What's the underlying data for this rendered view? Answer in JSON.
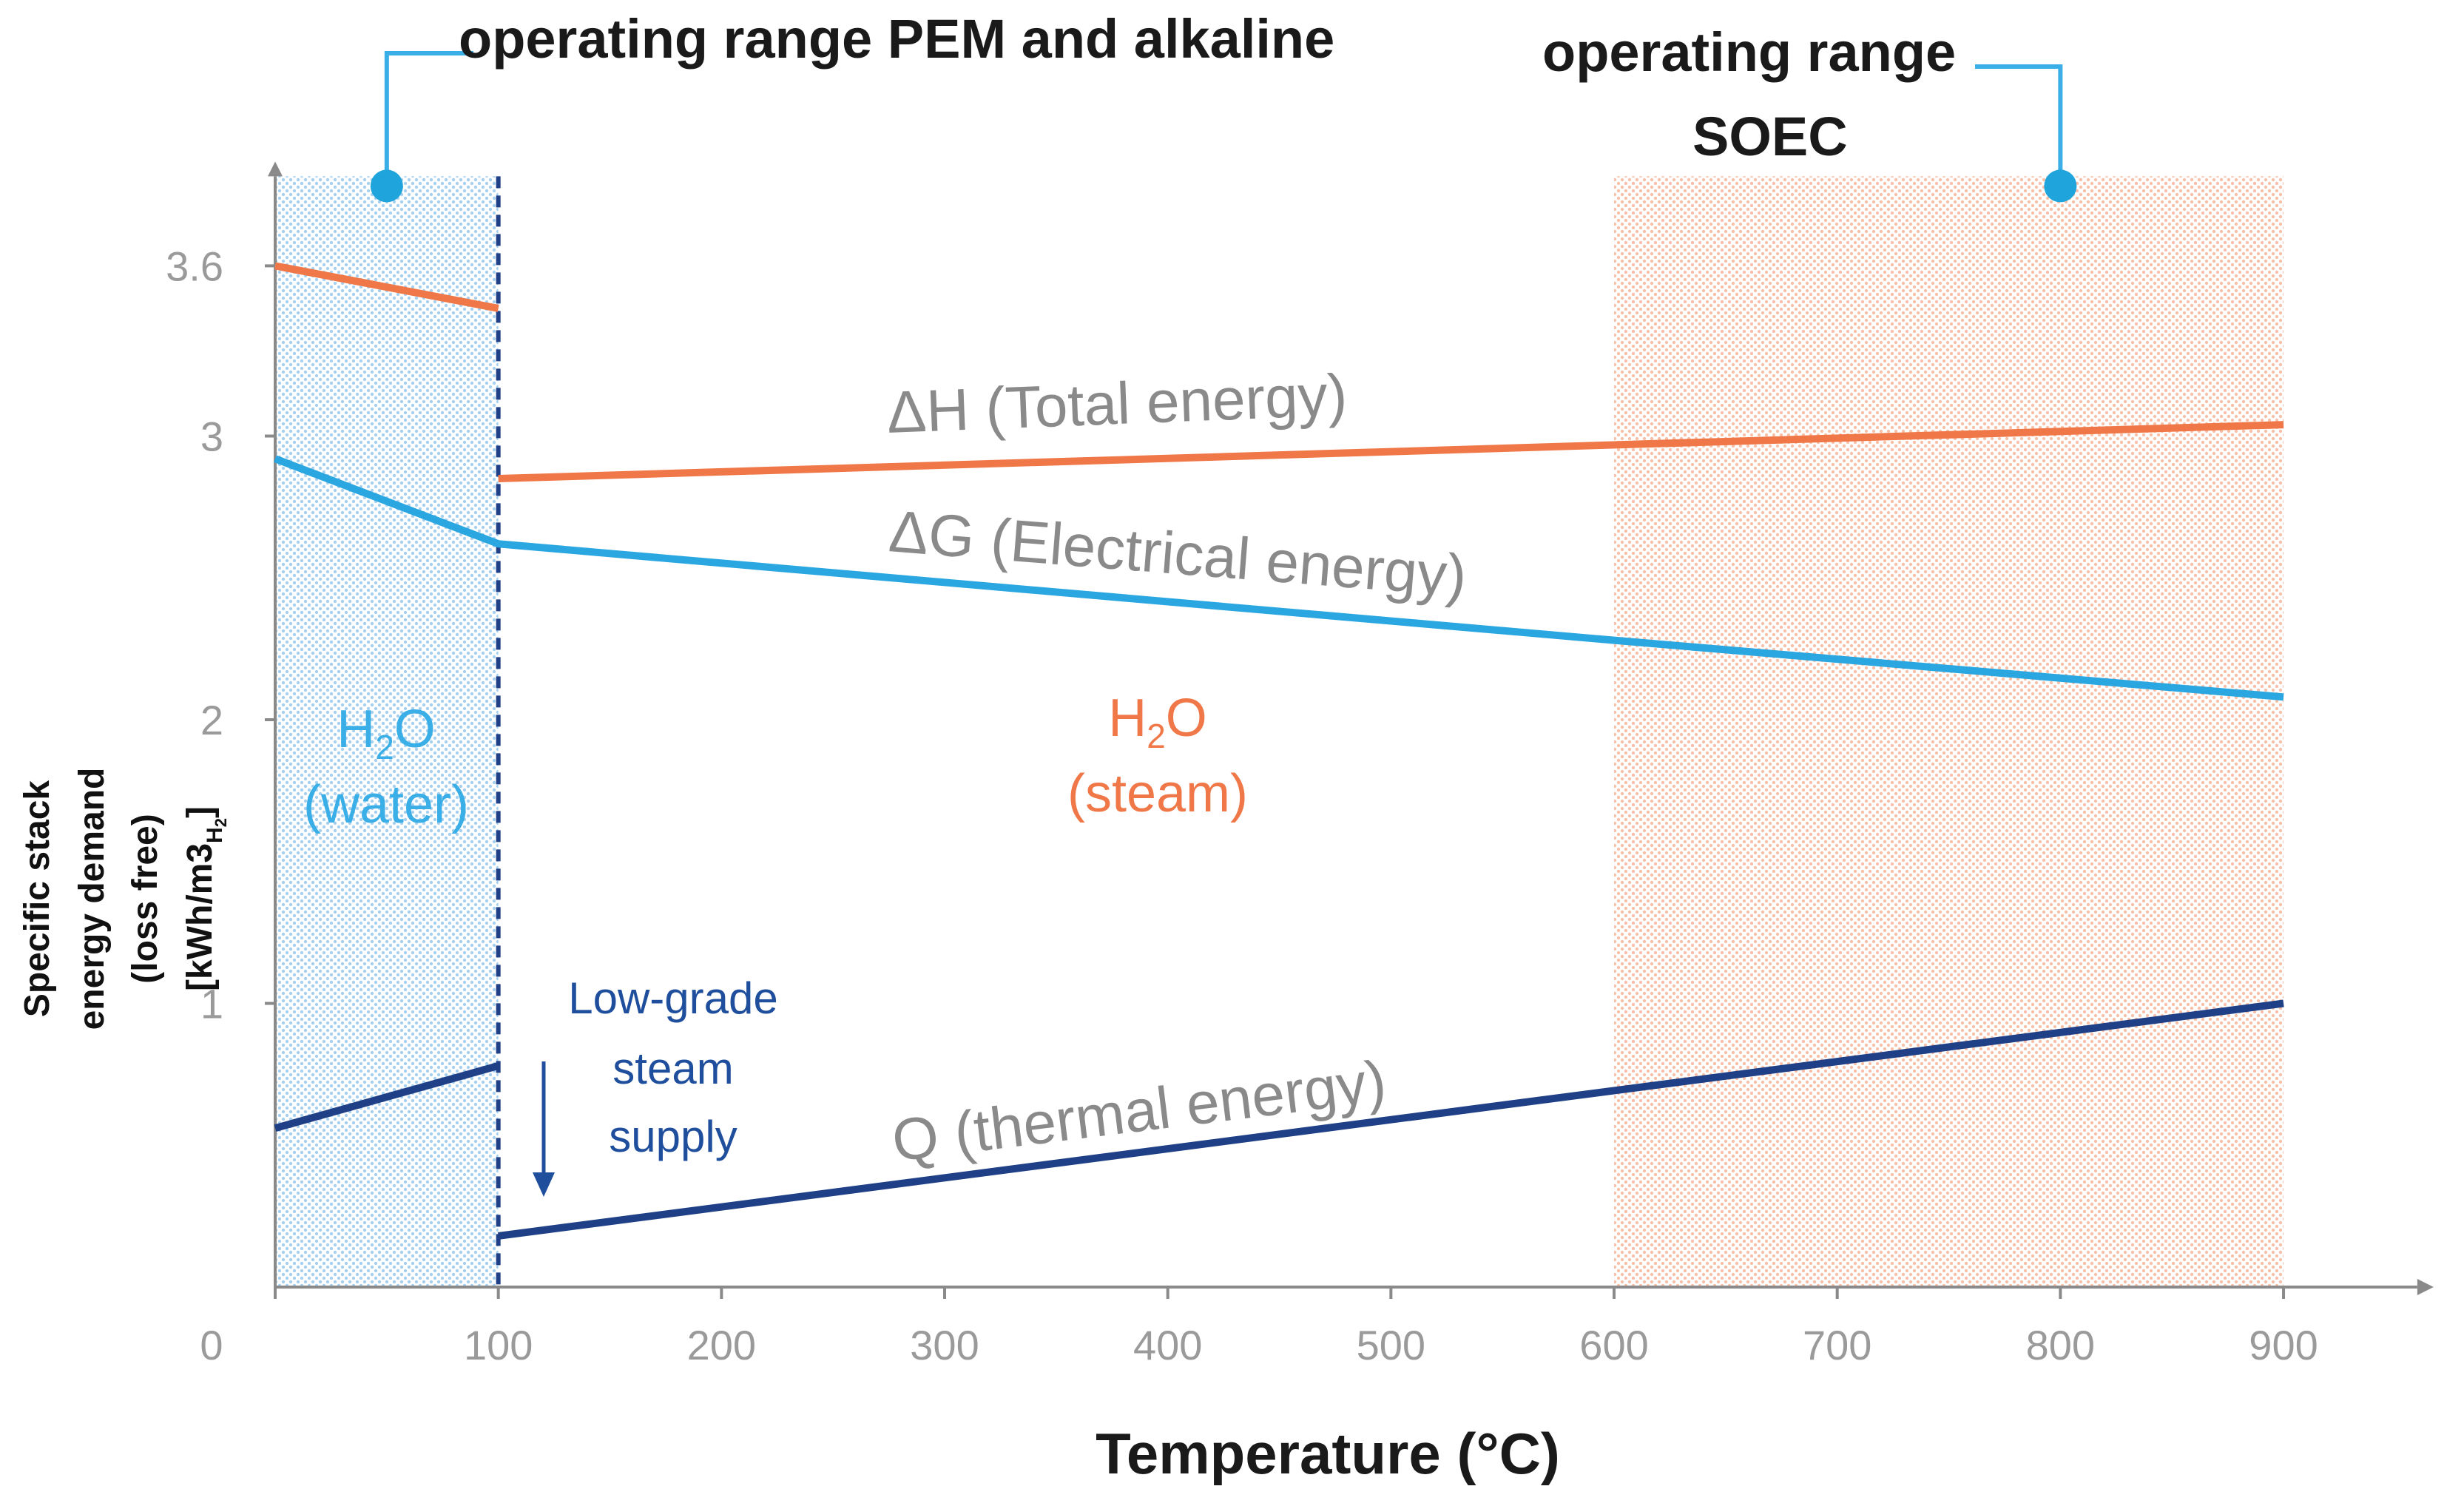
{
  "chart_data": {
    "type": "line",
    "xlabel": "Temperature (°C)",
    "ylabel_lines": [
      "Specific stack",
      "energy demand",
      "(loss free)"
    ],
    "ylabel_unit_main": "[kWh/m3",
    "ylabel_unit_sub": "H",
    "ylabel_unit_sub2": "2",
    "ylabel_unit_close": "]",
    "xlim": [
      0,
      950
    ],
    "ylim": [
      0,
      3.9
    ],
    "x_ticks": [
      0,
      100,
      200,
      300,
      400,
      500,
      600,
      700,
      800,
      900
    ],
    "x_tick_labels": [
      "0",
      "100",
      "200",
      "300",
      "400",
      "500",
      "600",
      "700",
      "800",
      "900"
    ],
    "y_ticks": [
      1,
      2,
      3,
      3.6
    ],
    "y_tick_labels": [
      "1",
      "2",
      "3",
      "3.6"
    ],
    "series": [
      {
        "name": "ΔH (Total energy)",
        "color": "#f07848",
        "segments": [
          [
            [
              0,
              3.6
            ],
            [
              100,
              3.45
            ]
          ],
          [
            [
              100,
              2.85
            ],
            [
              900,
              3.04
            ]
          ]
        ]
      },
      {
        "name": "ΔG (Electrical energy)",
        "color": "#2aa7e0",
        "segments": [
          [
            [
              0,
              2.92
            ],
            [
              100,
              2.62
            ],
            [
              600,
              2.28
            ],
            [
              900,
              2.08
            ]
          ]
        ]
      },
      {
        "name": "Q (thermal energy)",
        "color": "#1f3f86",
        "segments": [
          [
            [
              0,
              0.56
            ],
            [
              100,
              0.78
            ]
          ],
          [
            [
              100,
              0.18
            ],
            [
              900,
              1.0
            ]
          ]
        ]
      }
    ],
    "curve_labels": {
      "dh": "ΔH (Total energy)",
      "dg": "ΔG (Electrical energy)",
      "q": "Q (thermal energy)"
    },
    "regions": {
      "pem": {
        "label": "operating range PEM and alkaline",
        "x_range": [
          0,
          100
        ],
        "color": "#3aaee6"
      },
      "soec": {
        "label_line1": "operating range",
        "label_line2": "SOEC",
        "x_range": [
          600,
          900
        ],
        "color": "#f5a582"
      }
    },
    "annotations": {
      "water_line1": "H",
      "water_sub": "2",
      "water_rest": "O",
      "water_line2": "(water)",
      "steam_line1": "H",
      "steam_sub": "2",
      "steam_rest": "O",
      "steam_line2": "(steam)",
      "lowgrade_lines": [
        "Low-grade",
        "steam",
        "supply"
      ]
    }
  }
}
